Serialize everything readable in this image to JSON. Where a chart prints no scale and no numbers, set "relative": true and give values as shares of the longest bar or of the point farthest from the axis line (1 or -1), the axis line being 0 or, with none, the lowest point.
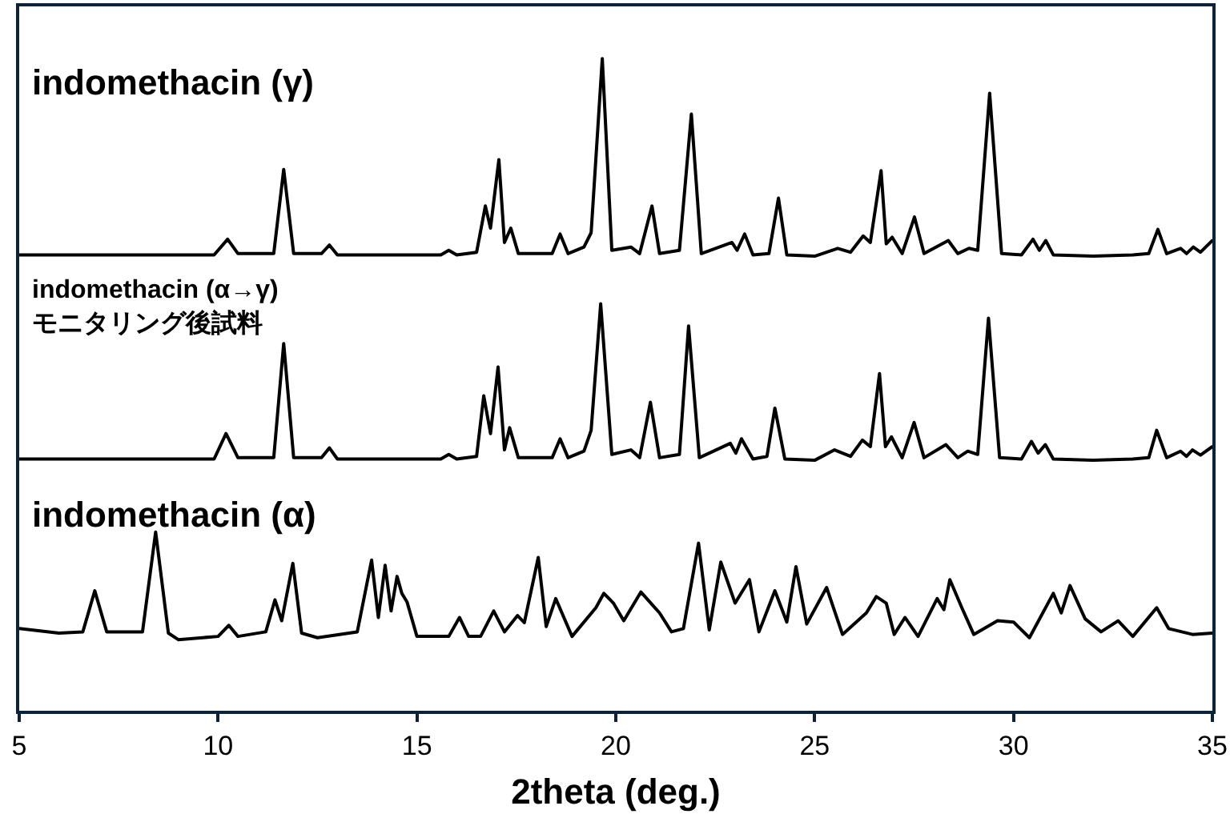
{
  "chart_data": {
    "type": "line",
    "relative": true,
    "xlabel": "2theta (deg.)",
    "xlim": [
      5,
      35
    ],
    "xticks": [
      5,
      10,
      15,
      20,
      25,
      30,
      35
    ],
    "legend": false,
    "marker": "none",
    "line_style": "solid",
    "series": [
      {
        "name": "indomethacin (γ)",
        "color": "#000000",
        "x": [
          5,
          9.9,
          10.24,
          10.5,
          11.4,
          11.65,
          11.9,
          12.6,
          12.8,
          13.0,
          15.6,
          15.8,
          16.0,
          16.5,
          16.72,
          16.85,
          17.06,
          17.2,
          17.36,
          17.55,
          18.4,
          18.6,
          18.8,
          19.2,
          19.38,
          19.66,
          19.9,
          20.38,
          20.6,
          20.91,
          21.1,
          21.6,
          21.9,
          22.15,
          22.92,
          23.05,
          23.24,
          23.45,
          23.85,
          24.09,
          24.3,
          25.0,
          25.58,
          25.9,
          26.22,
          26.4,
          26.67,
          26.8,
          26.95,
          27.2,
          27.51,
          27.75,
          28.36,
          28.6,
          28.88,
          29.1,
          29.4,
          29.7,
          30.2,
          30.49,
          30.65,
          30.81,
          31.0,
          32.0,
          33.0,
          33.4,
          33.63,
          33.85,
          34.2,
          34.35,
          34.52,
          34.7,
          35
        ],
        "values": [
          0.699,
          0.699,
          0.723,
          0.701,
          0.701,
          0.83,
          0.701,
          0.701,
          0.714,
          0.699,
          0.699,
          0.706,
          0.699,
          0.703,
          0.774,
          0.74,
          0.845,
          0.718,
          0.74,
          0.701,
          0.701,
          0.731,
          0.701,
          0.711,
          0.733,
          1.0,
          0.706,
          0.711,
          0.701,
          0.774,
          0.701,
          0.706,
          0.915,
          0.701,
          0.718,
          0.706,
          0.731,
          0.699,
          0.701,
          0.786,
          0.699,
          0.697,
          0.709,
          0.703,
          0.728,
          0.718,
          0.828,
          0.716,
          0.726,
          0.701,
          0.757,
          0.701,
          0.721,
          0.701,
          0.709,
          0.706,
          0.947,
          0.701,
          0.699,
          0.723,
          0.706,
          0.721,
          0.699,
          0.697,
          0.699,
          0.701,
          0.738,
          0.701,
          0.709,
          0.701,
          0.711,
          0.703,
          0.721
        ]
      },
      {
        "name": "indomethacin (α→γ)\nモニタリング後試料",
        "color": "#000000",
        "x": [
          5,
          9.9,
          10.2,
          10.5,
          11.4,
          11.65,
          11.9,
          12.6,
          12.8,
          13.0,
          15.6,
          15.8,
          16.0,
          16.5,
          16.68,
          16.85,
          17.04,
          17.2,
          17.33,
          17.55,
          18.4,
          18.6,
          18.8,
          19.2,
          19.38,
          19.62,
          19.9,
          20.38,
          20.6,
          20.87,
          21.1,
          21.6,
          21.83,
          22.1,
          22.88,
          23.02,
          23.16,
          23.45,
          23.8,
          24.0,
          24.25,
          25.0,
          25.5,
          25.9,
          26.2,
          26.4,
          26.63,
          26.78,
          26.93,
          27.2,
          27.5,
          27.75,
          28.3,
          28.6,
          28.85,
          29.1,
          29.37,
          29.65,
          30.2,
          30.45,
          30.62,
          30.8,
          31.0,
          32.0,
          33.0,
          33.4,
          33.6,
          33.85,
          34.2,
          34.35,
          34.5,
          34.7,
          35
        ],
        "values": [
          0.386,
          0.386,
          0.425,
          0.388,
          0.388,
          0.563,
          0.388,
          0.388,
          0.403,
          0.386,
          0.386,
          0.393,
          0.386,
          0.39,
          0.483,
          0.425,
          0.527,
          0.4,
          0.434,
          0.388,
          0.388,
          0.417,
          0.388,
          0.398,
          0.43,
          0.624,
          0.393,
          0.4,
          0.388,
          0.473,
          0.388,
          0.393,
          0.59,
          0.388,
          0.41,
          0.395,
          0.417,
          0.386,
          0.39,
          0.464,
          0.386,
          0.384,
          0.4,
          0.39,
          0.415,
          0.405,
          0.517,
          0.405,
          0.42,
          0.388,
          0.442,
          0.388,
          0.408,
          0.388,
          0.398,
          0.393,
          0.602,
          0.388,
          0.386,
          0.413,
          0.395,
          0.408,
          0.386,
          0.384,
          0.386,
          0.388,
          0.43,
          0.388,
          0.398,
          0.39,
          0.4,
          0.392,
          0.405
        ]
      },
      {
        "name": "indomethacin (α)",
        "color": "#000000",
        "x": [
          5,
          6.0,
          6.6,
          6.9,
          7.2,
          8.1,
          8.43,
          8.75,
          9.0,
          10.0,
          10.27,
          10.5,
          11.2,
          11.43,
          11.6,
          11.88,
          12.1,
          12.5,
          13.5,
          13.86,
          14.03,
          14.2,
          14.35,
          14.5,
          14.62,
          14.75,
          15.0,
          15.8,
          16.07,
          16.3,
          16.6,
          16.93,
          17.2,
          17.53,
          17.7,
          18.05,
          18.25,
          18.49,
          18.9,
          19.5,
          19.7,
          19.94,
          20.2,
          20.63,
          21.1,
          21.4,
          21.7,
          22.08,
          22.35,
          22.64,
          23.0,
          23.36,
          23.6,
          24.0,
          24.3,
          24.53,
          24.8,
          25.3,
          25.7,
          26.3,
          26.55,
          26.8,
          27.0,
          27.27,
          27.6,
          28.08,
          28.25,
          28.4,
          28.7,
          29.0,
          29.6,
          30.0,
          30.4,
          31.0,
          31.2,
          31.42,
          31.8,
          32.2,
          32.63,
          33.0,
          33.6,
          33.9,
          34.5,
          35
        ],
        "values": [
          0.126,
          0.119,
          0.121,
          0.184,
          0.121,
          0.121,
          0.274,
          0.119,
          0.109,
          0.114,
          0.131,
          0.114,
          0.121,
          0.17,
          0.138,
          0.226,
          0.119,
          0.112,
          0.121,
          0.231,
          0.143,
          0.223,
          0.153,
          0.206,
          0.18,
          0.167,
          0.114,
          0.114,
          0.143,
          0.114,
          0.114,
          0.153,
          0.121,
          0.146,
          0.135,
          0.235,
          0.129,
          0.172,
          0.114,
          0.158,
          0.18,
          0.165,
          0.138,
          0.182,
          0.15,
          0.121,
          0.126,
          0.257,
          0.124,
          0.228,
          0.165,
          0.201,
          0.121,
          0.184,
          0.136,
          0.221,
          0.133,
          0.189,
          0.117,
          0.15,
          0.175,
          0.165,
          0.117,
          0.143,
          0.114,
          0.172,
          0.155,
          0.201,
          0.158,
          0.117,
          0.138,
          0.136,
          0.112,
          0.18,
          0.15,
          0.192,
          0.141,
          0.121,
          0.138,
          0.114,
          0.158,
          0.126,
          0.117,
          0.119
        ]
      }
    ]
  }
}
